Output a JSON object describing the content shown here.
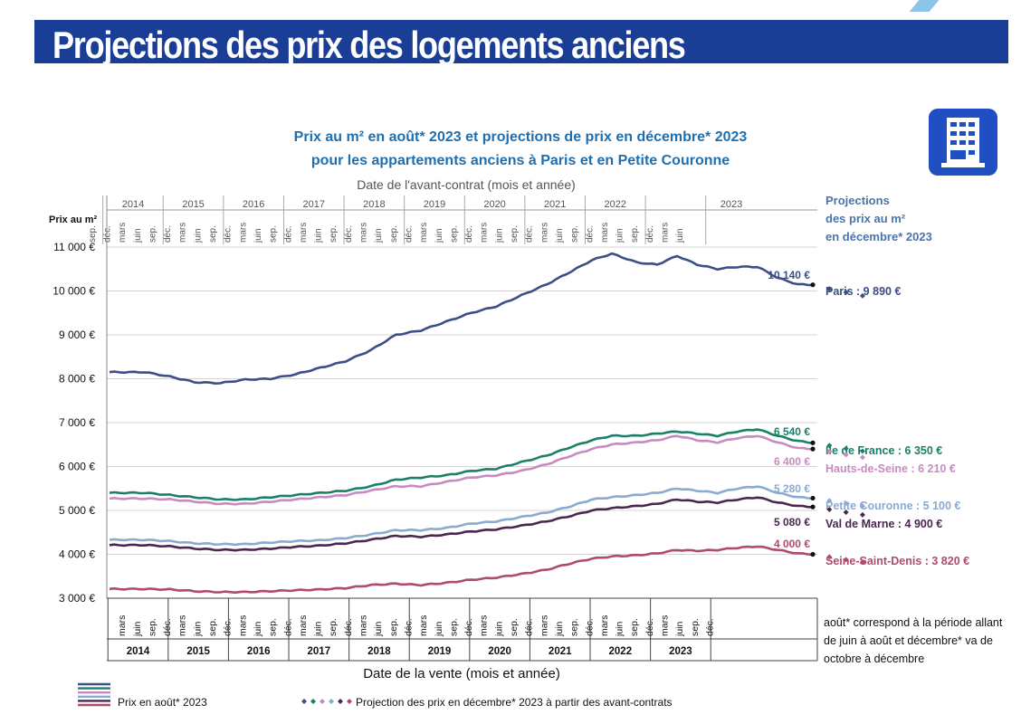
{
  "banner": {
    "title": "Projections des prix des logements anciens"
  },
  "header": {
    "title_line1": "Prix au m² en août* 2023 et projections de prix en décembre* 2023",
    "title_line2": "pour les appartements anciens à Paris et en Petite Couronne",
    "top_axis_label": "Date de l'avant-contrat (mois et année)",
    "side_title": [
      "Projections",
      "des prix au m²",
      "en décembre* 2023"
    ]
  },
  "note": "août* correspond à la période allant de juin à août et décembre* va de octobre à décembre",
  "legend": {
    "actual": "Prix en août* 2023",
    "projection": "Projection des prix en décembre* 2023 à partir des avant-contrats"
  },
  "chart_data": {
    "type": "line",
    "title": "Prix au m² en août* 2023 et projections de prix en décembre* 2023 pour les appartements anciens à Paris et en Petite Couronne",
    "xlabel": "Date de la vente (mois et année)",
    "x2label": "Date de l'avant-contrat (mois et année)",
    "ylabel": "Prix au m²",
    "ylim": [
      3000,
      11000
    ],
    "yticks": [
      "3 000 €",
      "4 000 €",
      "5 000 €",
      "6 000 €",
      "7 000 €",
      "8 000 €",
      "9 000 €",
      "10 000 €",
      "11 000 €"
    ],
    "years": [
      "2014",
      "2015",
      "2016",
      "2017",
      "2018",
      "2019",
      "2020",
      "2021",
      "2022",
      "2023"
    ],
    "bottom_months": [
      "mars",
      "juin",
      "sep.",
      "déc."
    ],
    "top_months": [
      "sep.",
      "déc.",
      "mars",
      "juin"
    ],
    "x_start": "2014-01",
    "series": [
      {
        "name": "Paris",
        "color": "#3b4f85",
        "anchor": [
          [
            0,
            8150
          ],
          [
            7,
            8150
          ],
          [
            12,
            8050
          ],
          [
            17,
            7920
          ],
          [
            22,
            7900
          ],
          [
            27,
            7980
          ],
          [
            32,
            8000
          ],
          [
            37,
            8100
          ],
          [
            42,
            8250
          ],
          [
            47,
            8400
          ],
          [
            52,
            8650
          ],
          [
            57,
            9000
          ],
          [
            62,
            9100
          ],
          [
            67,
            9300
          ],
          [
            72,
            9500
          ],
          [
            77,
            9650
          ],
          [
            82,
            9900
          ],
          [
            87,
            10150
          ],
          [
            92,
            10450
          ],
          [
            96,
            10700
          ],
          [
            100,
            10850
          ],
          [
            105,
            10650
          ],
          [
            109,
            10600
          ],
          [
            113,
            10800
          ],
          [
            117,
            10600
          ],
          [
            121,
            10500
          ],
          [
            125,
            10550
          ],
          [
            129,
            10550
          ],
          [
            133,
            10300
          ],
          [
            137,
            10150
          ],
          [
            140,
            10140
          ]
        ],
        "label_value": "10 140 €",
        "projection": [
          10140,
          10050,
          9970,
          9890
        ],
        "end_label": "Paris : 9 890 €"
      },
      {
        "name": "Ile de France",
        "color": "#1a8068",
        "anchor": [
          [
            0,
            5400
          ],
          [
            7,
            5400
          ],
          [
            12,
            5350
          ],
          [
            17,
            5300
          ],
          [
            22,
            5250
          ],
          [
            27,
            5250
          ],
          [
            32,
            5300
          ],
          [
            37,
            5350
          ],
          [
            42,
            5400
          ],
          [
            47,
            5450
          ],
          [
            52,
            5550
          ],
          [
            57,
            5700
          ],
          [
            62,
            5750
          ],
          [
            67,
            5800
          ],
          [
            72,
            5900
          ],
          [
            77,
            5950
          ],
          [
            82,
            6100
          ],
          [
            87,
            6250
          ],
          [
            92,
            6450
          ],
          [
            96,
            6600
          ],
          [
            100,
            6700
          ],
          [
            105,
            6700
          ],
          [
            109,
            6750
          ],
          [
            113,
            6800
          ],
          [
            117,
            6750
          ],
          [
            121,
            6700
          ],
          [
            125,
            6800
          ],
          [
            129,
            6850
          ],
          [
            133,
            6700
          ],
          [
            137,
            6580
          ],
          [
            140,
            6540
          ]
        ],
        "label_value": "6 540 €",
        "projection": [
          6540,
          6480,
          6410,
          6350
        ],
        "end_label": "Ile de France : 6 350 €"
      },
      {
        "name": "Hauts-de-Seine",
        "color": "#c98ac2",
        "anchor": [
          [
            0,
            5270
          ],
          [
            7,
            5270
          ],
          [
            12,
            5250
          ],
          [
            17,
            5200
          ],
          [
            22,
            5150
          ],
          [
            27,
            5150
          ],
          [
            32,
            5200
          ],
          [
            37,
            5250
          ],
          [
            42,
            5300
          ],
          [
            47,
            5350
          ],
          [
            52,
            5450
          ],
          [
            57,
            5550
          ],
          [
            62,
            5550
          ],
          [
            67,
            5650
          ],
          [
            72,
            5750
          ],
          [
            77,
            5800
          ],
          [
            82,
            5900
          ],
          [
            87,
            6050
          ],
          [
            92,
            6250
          ],
          [
            96,
            6400
          ],
          [
            100,
            6500
          ],
          [
            105,
            6550
          ],
          [
            109,
            6600
          ],
          [
            113,
            6700
          ],
          [
            117,
            6600
          ],
          [
            121,
            6550
          ],
          [
            125,
            6650
          ],
          [
            129,
            6700
          ],
          [
            133,
            6550
          ],
          [
            137,
            6420
          ],
          [
            140,
            6400
          ]
        ],
        "label_value": "6 400 €",
        "projection": [
          6400,
          6340,
          6270,
          6210
        ],
        "end_label": "Hauts-de-Seine : 6 210 €"
      },
      {
        "name": "Petite Couronne",
        "color": "#8aaad0",
        "anchor": [
          [
            0,
            4330
          ],
          [
            7,
            4330
          ],
          [
            12,
            4300
          ],
          [
            17,
            4250
          ],
          [
            22,
            4230
          ],
          [
            27,
            4230
          ],
          [
            32,
            4270
          ],
          [
            37,
            4300
          ],
          [
            42,
            4320
          ],
          [
            47,
            4370
          ],
          [
            52,
            4450
          ],
          [
            57,
            4550
          ],
          [
            62,
            4550
          ],
          [
            67,
            4600
          ],
          [
            72,
            4700
          ],
          [
            77,
            4750
          ],
          [
            82,
            4850
          ],
          [
            87,
            4950
          ],
          [
            92,
            5100
          ],
          [
            96,
            5250
          ],
          [
            100,
            5300
          ],
          [
            105,
            5350
          ],
          [
            109,
            5400
          ],
          [
            113,
            5500
          ],
          [
            117,
            5450
          ],
          [
            121,
            5400
          ],
          [
            125,
            5500
          ],
          [
            129,
            5550
          ],
          [
            133,
            5400
          ],
          [
            137,
            5300
          ],
          [
            140,
            5280
          ]
        ],
        "label_value": "5 280 €",
        "projection": [
          5280,
          5220,
          5160,
          5100
        ],
        "end_label": "Petite Couronne : 5 100 €"
      },
      {
        "name": "Val de Marne",
        "color": "#4a2650",
        "anchor": [
          [
            0,
            4210
          ],
          [
            7,
            4210
          ],
          [
            12,
            4180
          ],
          [
            17,
            4130
          ],
          [
            22,
            4100
          ],
          [
            27,
            4100
          ],
          [
            32,
            4130
          ],
          [
            37,
            4170
          ],
          [
            42,
            4200
          ],
          [
            47,
            4250
          ],
          [
            52,
            4330
          ],
          [
            57,
            4420
          ],
          [
            62,
            4400
          ],
          [
            67,
            4450
          ],
          [
            72,
            4520
          ],
          [
            77,
            4570
          ],
          [
            82,
            4650
          ],
          [
            87,
            4750
          ],
          [
            92,
            4880
          ],
          [
            96,
            5000
          ],
          [
            100,
            5050
          ],
          [
            105,
            5100
          ],
          [
            109,
            5150
          ],
          [
            113,
            5250
          ],
          [
            117,
            5200
          ],
          [
            121,
            5180
          ],
          [
            125,
            5250
          ],
          [
            129,
            5300
          ],
          [
            133,
            5180
          ],
          [
            137,
            5100
          ],
          [
            140,
            5080
          ]
        ],
        "label_value": "5 080 €",
        "projection": [
          5080,
          5020,
          4960,
          4900
        ],
        "end_label": "Val de Marne : 4 900 €"
      },
      {
        "name": "Seine-Saint-Denis",
        "color": "#b04a6e",
        "anchor": [
          [
            0,
            3210
          ],
          [
            7,
            3210
          ],
          [
            12,
            3200
          ],
          [
            17,
            3160
          ],
          [
            22,
            3140
          ],
          [
            27,
            3140
          ],
          [
            32,
            3160
          ],
          [
            37,
            3180
          ],
          [
            42,
            3200
          ],
          [
            47,
            3230
          ],
          [
            52,
            3300
          ],
          [
            57,
            3330
          ],
          [
            62,
            3300
          ],
          [
            67,
            3350
          ],
          [
            72,
            3420
          ],
          [
            77,
            3470
          ],
          [
            82,
            3550
          ],
          [
            87,
            3650
          ],
          [
            92,
            3800
          ],
          [
            96,
            3900
          ],
          [
            100,
            3950
          ],
          [
            105,
            3980
          ],
          [
            109,
            4020
          ],
          [
            113,
            4100
          ],
          [
            117,
            4080
          ],
          [
            121,
            4100
          ],
          [
            125,
            4150
          ],
          [
            129,
            4180
          ],
          [
            133,
            4100
          ],
          [
            137,
            4020
          ],
          [
            140,
            4000
          ]
        ],
        "label_value": "4 000 €",
        "projection": [
          4000,
          3940,
          3880,
          3820
        ],
        "end_label": "Seine-Saint-Denis : 3 820 €"
      }
    ]
  }
}
